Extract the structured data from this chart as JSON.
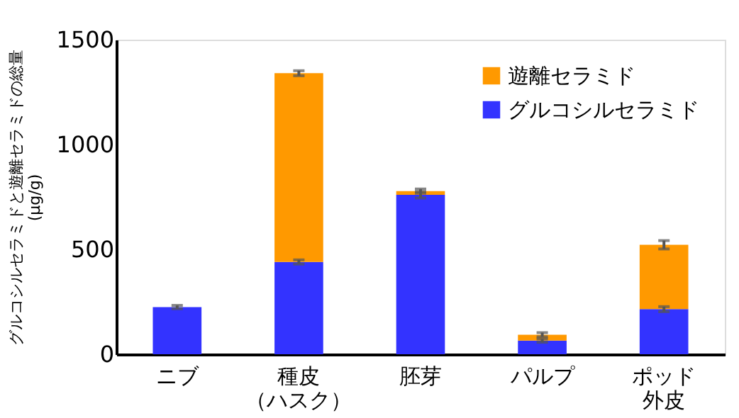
{
  "chart_data": {
    "type": "bar",
    "stacked": true,
    "categories": [
      "ニブ",
      "種皮（ハスク）",
      "胚芽",
      "パルプ",
      "ポッド外皮"
    ],
    "ylabel": "グルコシルセラミドと遊離セラミドの総量\n(μg/g)",
    "ylim": [
      0,
      1500
    ],
    "yticks": [
      0,
      500,
      1000,
      1500
    ],
    "grid": false,
    "legend": "top right",
    "series": [
      {
        "name": "グルコシルセラミド",
        "color": "#3333ff",
        "values": [
          225,
          440,
          760,
          65,
          215
        ],
        "errors": [
          8,
          10,
          15,
          8,
          12
        ]
      },
      {
        "name": "遊離セラミド",
        "color": "#ff9900",
        "values": [
          null,
          900,
          18,
          28,
          307
        ],
        "errors": [
          null,
          12,
          10,
          10,
          20
        ]
      }
    ]
  }
}
